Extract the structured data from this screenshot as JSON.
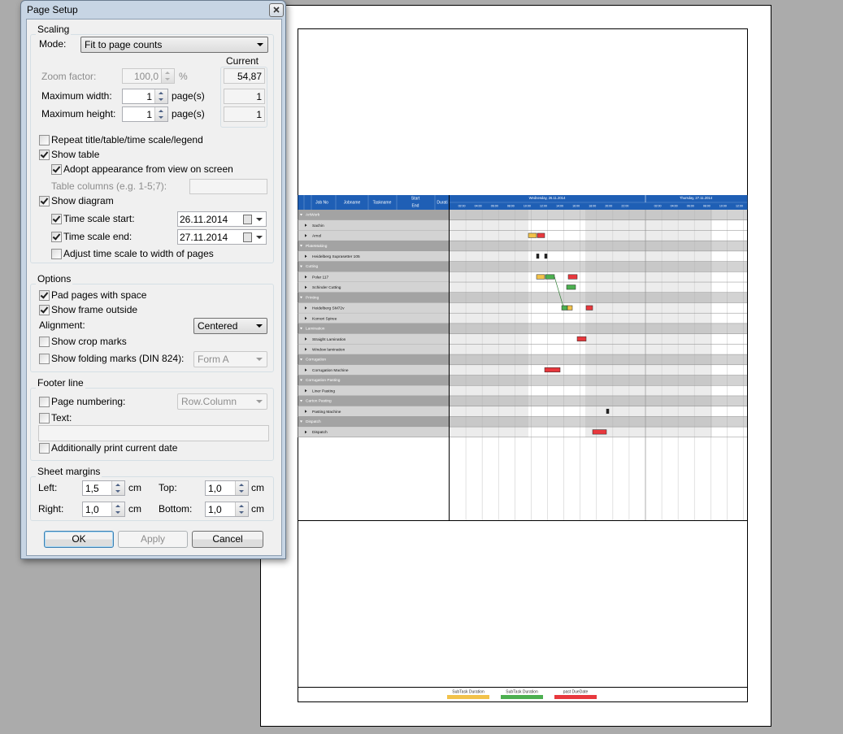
{
  "dialog": {
    "title": "Page Setup",
    "scaling": {
      "legend": "Scaling",
      "mode_label": "Mode:",
      "mode": "Fit to page counts",
      "current_legend": "Current",
      "zoom": {
        "label": "Zoom factor:",
        "value": "100,0",
        "unit": "%",
        "current": "54,87"
      },
      "max_width": {
        "label": "Maximum width:",
        "value": 1,
        "unit": "page(s)",
        "current": 1
      },
      "max_height": {
        "label": "Maximum height:",
        "value": 1,
        "unit": "page(s)",
        "current": 1
      },
      "repeat": {
        "label": "Repeat title/table/time scale/legend",
        "checked": false
      },
      "show_table": {
        "label": "Show table",
        "checked": true
      },
      "adopt": {
        "label": "Adopt appearance from view on screen",
        "checked": true
      },
      "table_columns_label": "Table columns (e.g. 1-5;7):",
      "show_diagram": {
        "label": "Show diagram",
        "checked": true
      },
      "start": {
        "label": "Time scale start:",
        "checked": true,
        "value": "26.11.2014"
      },
      "end": {
        "label": "Time scale end:",
        "checked": true,
        "value": "27.11.2014"
      },
      "adjust": {
        "label": "Adjust time scale to width of pages",
        "checked": false
      }
    },
    "options": {
      "legend": "Options",
      "pad": {
        "label": "Pad pages with space",
        "checked": true
      },
      "frame": {
        "label": "Show frame outside",
        "checked": true
      },
      "alignment_label": "Alignment:",
      "alignment": "Centered",
      "crop": {
        "label": "Show crop marks",
        "checked": false
      },
      "folding": {
        "label": "Show folding marks (DIN 824):",
        "checked": false,
        "value": "Form A"
      }
    },
    "footer": {
      "legend": "Footer line",
      "numbering": {
        "label": "Page numbering:",
        "checked": false,
        "value": "Row.Column"
      },
      "text": {
        "label": "Text:",
        "checked": false
      },
      "date": {
        "label": "Additionally print current date",
        "checked": false
      }
    },
    "margins": {
      "legend": "Sheet margins",
      "unit": "cm",
      "left": {
        "label": "Left:",
        "value": "1,5"
      },
      "top": {
        "label": "Top:",
        "value": "1,0"
      },
      "right": {
        "label": "Right:",
        "value": "1,0"
      },
      "bottom": {
        "label": "Bottom:",
        "value": "1,0"
      }
    },
    "buttons": {
      "ok": "OK",
      "apply": "Apply",
      "cancel": "Cancel"
    }
  },
  "preview": {
    "columns": [
      "Job No",
      "Jobname",
      "Taskname",
      "Start",
      "End",
      "Durati"
    ],
    "days": [
      "Wednesday, 26.11.2014",
      "Thursday, 27.11.2014"
    ],
    "hours": [
      "02:00",
      "04:00",
      "06:00",
      "08:00",
      "10:00",
      "12:00",
      "14:00",
      "16:00",
      "18:00",
      "20:00",
      "22:00"
    ],
    "rows": [
      {
        "label": "ArtWork",
        "group": true
      },
      {
        "label": "Sachin",
        "group": false
      },
      {
        "label": "Arnol",
        "group": false
      },
      {
        "label": "PlateMaking",
        "group": true
      },
      {
        "label": "Heidelberg Suprasetter 105",
        "group": false
      },
      {
        "label": "Cutting",
        "group": true
      },
      {
        "label": "Polar 117",
        "group": false
      },
      {
        "label": "Schinder Cutting",
        "group": false
      },
      {
        "label": "Printing",
        "group": true
      },
      {
        "label": "Heidelberg SM72v",
        "group": false
      },
      {
        "label": "Komori Spiree",
        "group": false
      },
      {
        "label": "Lamination",
        "group": true
      },
      {
        "label": "Straight Lamination",
        "group": false
      },
      {
        "label": "Window lamination",
        "group": false
      },
      {
        "label": "Corrugation",
        "group": true
      },
      {
        "label": "Corrugation Machine",
        "group": false
      },
      {
        "label": "Corrugation Pasting",
        "group": true
      },
      {
        "label": "Liner Pasting",
        "group": false
      },
      {
        "label": "Carton Pasting",
        "group": true
      },
      {
        "label": "Pasting Machine",
        "group": false
      },
      {
        "label": "Dispatch",
        "group": true
      },
      {
        "label": "Dispatch",
        "group": false
      }
    ],
    "legend": [
      {
        "label": "SubTask Duration",
        "color": "#f2c24a"
      },
      {
        "label": "SubTask Duration",
        "color": "#4caf50"
      },
      {
        "label": "past DueDate",
        "color": "#e8383d"
      }
    ]
  }
}
